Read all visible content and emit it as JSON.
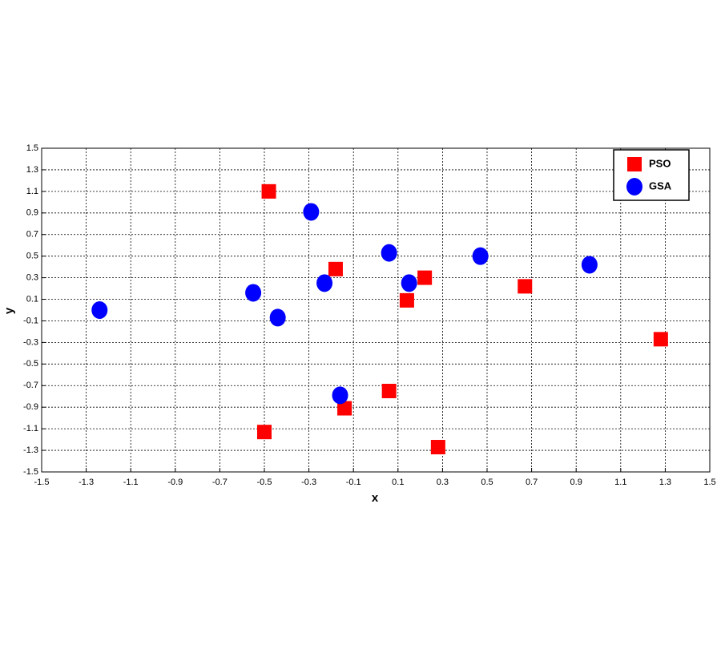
{
  "chart_data": {
    "type": "scatter",
    "x_label": "x",
    "y_label": "y",
    "xlim": [
      -1.5,
      1.5
    ],
    "ylim": [
      -1.5,
      1.5
    ],
    "xticks": [
      -1.5,
      -1.3,
      -1.1,
      -0.9,
      -0.7,
      -0.5,
      -0.3,
      -0.1,
      0.1,
      0.3,
      0.5,
      0.7,
      0.9,
      1.1,
      1.3,
      1.5
    ],
    "yticks": [
      -1.5,
      -1.3,
      -1.1,
      -0.9,
      -0.7,
      -0.5,
      -0.3,
      -0.1,
      0.1,
      0.3,
      0.5,
      0.7,
      0.9,
      1.1,
      1.3,
      1.5
    ],
    "grid": true,
    "legend": "upper right",
    "series": [
      {
        "name": "PSO",
        "color": "#ff0000",
        "marker": "square",
        "x": [
          -0.48,
          -0.18,
          0.22,
          0.14,
          0.67,
          1.28,
          0.06,
          -0.14,
          -0.5,
          0.28
        ],
        "y": [
          1.1,
          0.38,
          0.3,
          0.09,
          0.22,
          -0.27,
          -0.75,
          -0.91,
          -1.13,
          -1.27
        ]
      },
      {
        "name": "GSA",
        "color": "#0000ff",
        "marker": "circle",
        "x": [
          -1.24,
          -0.55,
          -0.44,
          -0.29,
          -0.23,
          -0.16,
          0.06,
          0.15,
          0.47,
          0.96
        ],
        "y": [
          0,
          0.16,
          -0.07,
          0.91,
          0.25,
          -0.79,
          0.53,
          0.25,
          0.5,
          0.42
        ]
      }
    ]
  }
}
